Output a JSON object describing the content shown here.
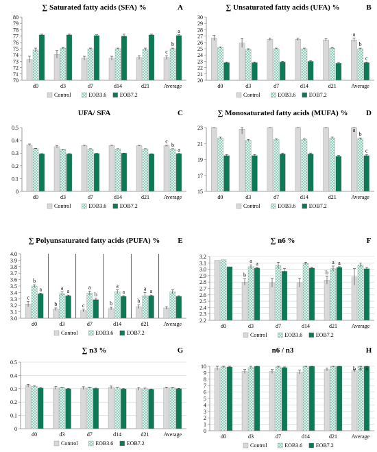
{
  "figure": {
    "colors": {
      "control": "#d9d9d9",
      "eob36_bg": "#dff3ee",
      "eob36_dot": "#2f9a78",
      "eob72": "#0c7a56",
      "axis": "#808080",
      "text": "#000000"
    },
    "legend_labels": [
      "Control",
      "EOB3.6",
      "EOB7.2"
    ]
  },
  "chart_data": [
    {
      "id": "A",
      "type": "bar",
      "panel_label": "A",
      "title": "∑ Saturated fatty acids (SFA) %",
      "categories": [
        "d0",
        "d3",
        "d7",
        "d14",
        "d21",
        "Average"
      ],
      "ylim": [
        70,
        80
      ],
      "yticks": [
        "70",
        "71",
        "72",
        "73",
        "74",
        "75",
        "76",
        "77",
        "78",
        "79",
        "80"
      ],
      "series": [
        {
          "name": "Control",
          "values": [
            73.3,
            74.1,
            73.5,
            73.5,
            73.6,
            73.6
          ],
          "errors": [
            0.5,
            0.6,
            0.3,
            0.3,
            0.3,
            0.3
          ]
        },
        {
          "name": "EOB3.6",
          "values": [
            74.8,
            75.1,
            75.0,
            75.0,
            74.9,
            75.0
          ],
          "errors": [
            0.3,
            0.1,
            0.1,
            0.1,
            0.2,
            0.1
          ]
        },
        {
          "name": "EOB7.2",
          "values": [
            77.2,
            77.2,
            77.1,
            77.0,
            77.2,
            77.1
          ],
          "errors": [
            0.1,
            0.1,
            0.1,
            0.3,
            0.1,
            0.1
          ]
        }
      ],
      "letters": [
        {
          "cat": 5,
          "series": 0,
          "text": "c"
        },
        {
          "cat": 5,
          "series": 1,
          "text": "b"
        },
        {
          "cat": 5,
          "series": 2,
          "text": "a"
        }
      ],
      "separators": false,
      "grid": false,
      "legend": "bottom"
    },
    {
      "id": "B",
      "type": "bar",
      "panel_label": "B",
      "title": "∑ Unsaturated fatty acids (UFA) %",
      "categories": [
        "d0",
        "d3",
        "d7",
        "d14",
        "d21",
        "Average"
      ],
      "ylim": [
        20,
        30
      ],
      "yticks": [
        "20",
        "21",
        "22",
        "23",
        "24",
        "25",
        "26",
        "27",
        "28",
        "29",
        "30"
      ],
      "series": [
        {
          "name": "Control",
          "values": [
            26.7,
            25.9,
            26.5,
            26.5,
            26.4,
            26.4
          ],
          "errors": [
            0.4,
            0.7,
            0.2,
            0.2,
            0.2,
            0.3
          ]
        },
        {
          "name": "EOB3.6",
          "values": [
            25.2,
            24.9,
            25.0,
            25.0,
            25.1,
            25.0
          ],
          "errors": [
            0.1,
            0.1,
            0.1,
            0.1,
            0.1,
            0.1
          ]
        },
        {
          "name": "EOB7.2",
          "values": [
            22.8,
            22.8,
            22.9,
            23.0,
            22.7,
            22.8
          ],
          "errors": [
            0.1,
            0.1,
            0.1,
            0.1,
            0.1,
            0.1
          ]
        }
      ],
      "letters": [
        {
          "cat": 5,
          "series": 0,
          "text": "a"
        },
        {
          "cat": 5,
          "series": 1,
          "text": "b"
        },
        {
          "cat": 5,
          "series": 2,
          "text": "c"
        }
      ],
      "separators": false,
      "grid": false,
      "legend": "bottom"
    },
    {
      "id": "C",
      "type": "bar",
      "panel_label": "C",
      "title": "UFA/ SFA",
      "categories": [
        "d0",
        "d3",
        "d7",
        "d14",
        "d21",
        "Average"
      ],
      "ylim": [
        0,
        0.5
      ],
      "yticks": [
        "0",
        "0.1",
        "0.2",
        "0.3",
        "0.4",
        "0.5"
      ],
      "series": [
        {
          "name": "Control",
          "values": [
            0.365,
            0.35,
            0.36,
            0.36,
            0.358,
            0.358
          ],
          "errors": [
            0.006,
            0.009,
            0.003,
            0.003,
            0.003,
            0.004
          ]
        },
        {
          "name": "EOB3.6",
          "values": [
            0.335,
            0.33,
            0.333,
            0.333,
            0.333,
            0.333
          ],
          "errors": [
            0.002,
            0.001,
            0.001,
            0.001,
            0.001,
            0.001
          ]
        },
        {
          "name": "EOB7.2",
          "values": [
            0.295,
            0.295,
            0.297,
            0.299,
            0.294,
            0.296
          ],
          "errors": [
            0.001,
            0.001,
            0.001,
            0.001,
            0.001,
            0.001
          ]
        }
      ],
      "letters": [
        {
          "cat": 5,
          "series": 0,
          "text": "c"
        },
        {
          "cat": 5,
          "series": 1,
          "text": "b"
        },
        {
          "cat": 5,
          "series": 2,
          "text": "a"
        }
      ],
      "separators": false,
      "grid": false,
      "legend": "bottom"
    },
    {
      "id": "D",
      "type": "bar",
      "panel_label": "D",
      "title": "∑ Monosaturated fatty acids (MUFA) %",
      "categories": [
        "d0",
        "d3",
        "d7",
        "d14",
        "d21",
        "Average"
      ],
      "ylim": [
        15,
        23
      ],
      "yticks": [
        "15",
        "17",
        "19",
        "21",
        "23"
      ],
      "series": [
        {
          "name": "Control",
          "values": [
            23.3,
            22.8,
            23.3,
            23.3,
            23.2,
            23.2
          ],
          "errors": [
            0.2,
            0.6,
            0.2,
            0.2,
            0.2,
            0.2
          ]
        },
        {
          "name": "EOB3.6",
          "values": [
            21.7,
            21.4,
            21.5,
            21.5,
            21.7,
            21.6
          ],
          "errors": [
            0.1,
            0.1,
            0.1,
            0.1,
            0.1,
            0.1
          ]
        },
        {
          "name": "EOB7.2",
          "values": [
            19.5,
            19.5,
            19.7,
            19.7,
            19.4,
            19.5
          ],
          "errors": [
            0.1,
            0.1,
            0.1,
            0.1,
            0.1,
            0.1
          ]
        }
      ],
      "letters": [
        {
          "cat": 5,
          "series": 0,
          "text": "a"
        },
        {
          "cat": 5,
          "series": 1,
          "text": "b"
        },
        {
          "cat": 5,
          "series": 2,
          "text": "c"
        }
      ],
      "separators": false,
      "grid": false,
      "legend": "bottom"
    },
    {
      "id": "E",
      "type": "bar",
      "panel_label": "E",
      "title": "∑ Polyunsaturated fatty acids (PUFA) %",
      "categories": [
        "d0",
        "d3",
        "d7",
        "d14",
        "d21",
        "Average"
      ],
      "ylim": [
        3.0,
        4.0
      ],
      "yticks": [
        "3.0",
        "3.1",
        "3.2",
        "3.3",
        "3.4",
        "3.5",
        "3.6",
        "3.7",
        "3.8",
        "3.9",
        "4.0"
      ],
      "series": [
        {
          "name": "Control",
          "values": [
            3.22,
            3.14,
            3.12,
            3.15,
            3.18,
            3.16
          ],
          "errors": [
            0.04,
            0.02,
            0.02,
            0.02,
            0.03,
            0.02
          ]
        },
        {
          "name": "EOB3.6",
          "values": [
            3.5,
            3.38,
            3.39,
            3.41,
            3.35,
            3.41
          ],
          "errors": [
            0.02,
            0.03,
            0.03,
            0.03,
            0.05,
            0.03
          ]
        },
        {
          "name": "EOB7.2",
          "values": [
            3.38,
            3.35,
            3.29,
            3.34,
            3.35,
            3.34
          ],
          "errors": [
            0.01,
            0.01,
            0.02,
            0.01,
            0.01,
            0.01
          ]
        }
      ],
      "letters": [
        {
          "cat": 0,
          "series": 0,
          "text": "c"
        },
        {
          "cat": 0,
          "series": 1,
          "text": "b"
        },
        {
          "cat": 0,
          "series": 2,
          "text": "a"
        },
        {
          "cat": 1,
          "series": 0,
          "text": "b"
        },
        {
          "cat": 1,
          "series": 1,
          "text": "a"
        },
        {
          "cat": 1,
          "series": 2,
          "text": "a"
        },
        {
          "cat": 2,
          "series": 0,
          "text": "c"
        },
        {
          "cat": 2,
          "series": 1,
          "text": "a"
        },
        {
          "cat": 2,
          "series": 2,
          "text": "b"
        },
        {
          "cat": 3,
          "series": 0,
          "text": "b"
        },
        {
          "cat": 3,
          "series": 1,
          "text": "a"
        },
        {
          "cat": 3,
          "series": 2,
          "text": "a"
        },
        {
          "cat": 4,
          "series": 0,
          "text": "b"
        },
        {
          "cat": 4,
          "series": 1,
          "text": "a"
        },
        {
          "cat": 4,
          "series": 2,
          "text": "a"
        }
      ],
      "separators": true,
      "grid": false,
      "legend": "bottom"
    },
    {
      "id": "F",
      "type": "bar",
      "panel_label": "F",
      "title": "∑ n6 %",
      "categories": [
        "d0",
        "d3",
        "d7",
        "d14",
        "d21",
        "Average"
      ],
      "ylim": [
        2.2,
        3.2
      ],
      "yticks": [
        "2.2",
        "2.3",
        "2.4",
        "2.5",
        "2.6",
        "2.7",
        "2.8",
        "2.9",
        "3.0",
        "3.1",
        "3.2"
      ],
      "series": [
        {
          "name": "Control",
          "values": [
            3.14,
            2.8,
            2.79,
            2.79,
            2.83,
            2.88
          ],
          "errors": [
            0.0,
            0.05,
            0.07,
            0.07,
            0.06,
            0.13
          ]
        },
        {
          "name": "EOB3.6",
          "values": [
            3.15,
            3.04,
            3.06,
            3.09,
            3.01,
            3.07
          ],
          "errors": [
            0.0,
            0.03,
            0.05,
            0.02,
            0.04,
            0.03
          ]
        },
        {
          "name": "EOB7.2",
          "values": [
            3.04,
            3.02,
            2.97,
            3.02,
            3.03,
            3.01
          ],
          "errors": [
            0.0,
            0.01,
            0.04,
            0.01,
            0.01,
            0.02
          ]
        }
      ],
      "letters": [
        {
          "cat": 1,
          "series": 0,
          "text": "b"
        },
        {
          "cat": 1,
          "series": 1,
          "text": "a"
        },
        {
          "cat": 1,
          "series": 2,
          "text": "a"
        },
        {
          "cat": 4,
          "series": 0,
          "text": "b"
        },
        {
          "cat": 4,
          "series": 1,
          "text": "a"
        },
        {
          "cat": 4,
          "series": 2,
          "text": "a"
        }
      ],
      "separators": false,
      "grid": true,
      "legend": "bottom"
    },
    {
      "id": "G",
      "type": "bar",
      "panel_label": "G",
      "title": "∑ n3 %",
      "categories": [
        "d0",
        "d3",
        "d7",
        "d14",
        "d21",
        "Average"
      ],
      "ylim": [
        0,
        0.5
      ],
      "yticks": [
        "0",
        "0.1",
        "0.2",
        "0.3",
        "0.4",
        "0.5"
      ],
      "series": [
        {
          "name": "Control",
          "values": [
            0.323,
            0.306,
            0.305,
            0.31,
            0.3,
            0.308
          ],
          "errors": [
            0.01,
            0.01,
            0.01,
            0.01,
            0.01,
            0.005
          ]
        },
        {
          "name": "EOB3.6",
          "values": [
            0.318,
            0.31,
            0.31,
            0.307,
            0.3,
            0.309
          ],
          "errors": [
            0.003,
            0.003,
            0.003,
            0.003,
            0.005,
            0.003
          ]
        },
        {
          "name": "EOB7.2",
          "values": [
            0.306,
            0.3,
            0.303,
            0.299,
            0.296,
            0.301
          ],
          "errors": [
            0.003,
            0.002,
            0.002,
            0.002,
            0.002,
            0.002
          ]
        }
      ],
      "letters": [],
      "separators": false,
      "grid": true,
      "legend": "bottom"
    },
    {
      "id": "H",
      "type": "bar",
      "panel_label": "H",
      "title": "n6 / n3",
      "categories": [
        "d0",
        "d3",
        "d7",
        "d14",
        "d21",
        "Average"
      ],
      "ylim": [
        0,
        10
      ],
      "yticks": [
        "0",
        "1",
        "2",
        "3",
        "4",
        "5",
        "6",
        "7",
        "8",
        "9",
        "10"
      ],
      "series": [
        {
          "name": "Control",
          "values": [
            9.7,
            9.2,
            9.2,
            9.1,
            9.5,
            9.3
          ],
          "errors": [
            0.3,
            0.3,
            0.3,
            0.3,
            0.2,
            0.2
          ]
        },
        {
          "name": "EOB3.6",
          "values": [
            9.9,
            9.8,
            9.9,
            10.0,
            10.0,
            10.0
          ],
          "errors": [
            0.1,
            0.2,
            0.1,
            0.1,
            0.1,
            0.1
          ]
        },
        {
          "name": "EOB7.2",
          "values": [
            9.9,
            10.0,
            9.8,
            10.0,
            10.0,
            10.0
          ],
          "errors": [
            0.1,
            0.1,
            0.1,
            0.1,
            0.1,
            0.1
          ]
        }
      ],
      "letters": [
        {
          "cat": 5,
          "series": 0,
          "text": "b"
        },
        {
          "cat": 5,
          "series": 1,
          "text": "a"
        },
        {
          "cat": 5,
          "series": 2,
          "text": "a"
        }
      ],
      "separators": false,
      "grid": true,
      "legend": "bottom"
    }
  ]
}
